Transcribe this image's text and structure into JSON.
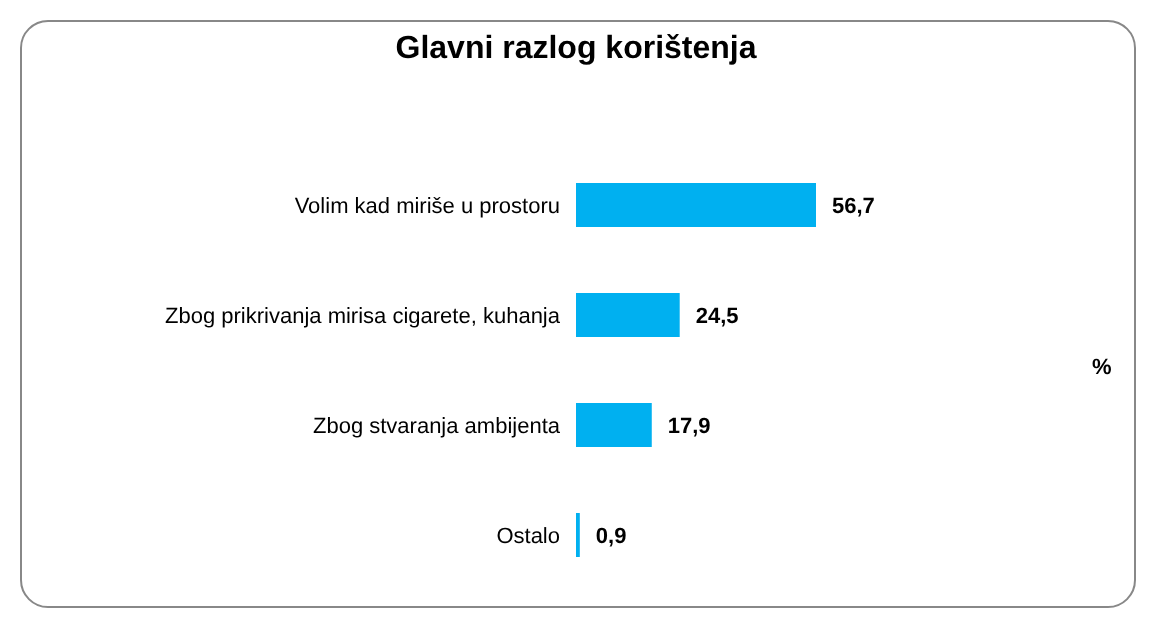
{
  "chart_data": {
    "type": "bar",
    "orientation": "horizontal",
    "title": "Glavni razlog korištenja",
    "categories": [
      "Volim kad miriše u prostoru",
      "Zbog prikrivanja mirisa cigarete, kuhanja",
      "Zbog stvaranja ambijenta",
      "Ostalo"
    ],
    "values": [
      56.7,
      24.5,
      17.9,
      0.9
    ],
    "value_labels": [
      "56,7",
      "24,5",
      "17,9",
      "0,9"
    ],
    "color": "#00b0f0",
    "annotations": [
      "%"
    ]
  }
}
